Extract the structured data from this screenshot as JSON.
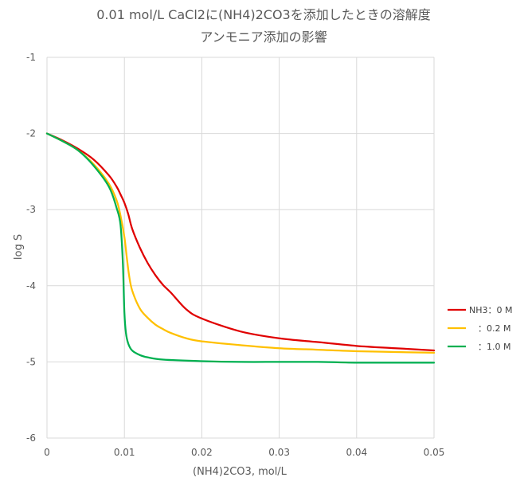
{
  "chart_data": {
    "type": "line",
    "title": "0.01 mol/L CaCl2に(NH4)2CO3を添加したときの溶解度",
    "subtitle": "アンモニア添加の影響",
    "xlabel": "(NH4)2CO3, mol/L",
    "ylabel": "log S",
    "xlim": [
      0,
      0.05
    ],
    "ylim": [
      -6,
      -1
    ],
    "x_ticks": [
      0,
      0.01,
      0.02,
      0.03,
      0.04,
      0.05
    ],
    "x_tick_labels": [
      "0",
      "0.01",
      "0.02",
      "0.03",
      "0.04",
      "0.05"
    ],
    "y_ticks": [
      -1,
      -2,
      -3,
      -4,
      -5,
      -6
    ],
    "y_tick_labels": [
      "-1",
      "-2",
      "-3",
      "-4",
      "-5",
      "-6"
    ],
    "grid": true,
    "legend_position": "right",
    "series": [
      {
        "name": "NH3：0 M",
        "color": "#e00000",
        "x": [
          0,
          0.002,
          0.004,
          0.006,
          0.008,
          0.009,
          0.0095,
          0.01,
          0.0105,
          0.011,
          0.012,
          0.013,
          0.014,
          0.015,
          0.016,
          0.018,
          0.02,
          0.025,
          0.03,
          0.035,
          0.04,
          0.045,
          0.05
        ],
        "y": [
          -2.0,
          -2.09,
          -2.2,
          -2.34,
          -2.55,
          -2.7,
          -2.8,
          -2.91,
          -3.06,
          -3.25,
          -3.5,
          -3.7,
          -3.86,
          -3.99,
          -4.09,
          -4.31,
          -4.43,
          -4.6,
          -4.69,
          -4.74,
          -4.79,
          -4.82,
          -4.85
        ]
      },
      {
        "name": "：0.2 M",
        "color": "#ffc000",
        "x": [
          0,
          0.002,
          0.004,
          0.006,
          0.008,
          0.009,
          0.0095,
          0.01,
          0.0103,
          0.0106,
          0.011,
          0.012,
          0.013,
          0.014,
          0.015,
          0.016,
          0.018,
          0.02,
          0.025,
          0.03,
          0.035,
          0.04,
          0.045,
          0.05
        ],
        "y": [
          -2.0,
          -2.1,
          -2.22,
          -2.4,
          -2.66,
          -2.88,
          -3.08,
          -3.36,
          -3.62,
          -3.86,
          -4.06,
          -4.3,
          -4.42,
          -4.51,
          -4.57,
          -4.62,
          -4.69,
          -4.73,
          -4.78,
          -4.82,
          -4.84,
          -4.86,
          -4.87,
          -4.88
        ]
      },
      {
        "name": "：1.0 M",
        "color": "#00b050",
        "x": [
          0,
          0.002,
          0.004,
          0.006,
          0.008,
          0.009,
          0.0095,
          0.0098,
          0.01,
          0.0102,
          0.0105,
          0.011,
          0.012,
          0.013,
          0.015,
          0.02,
          0.025,
          0.03,
          0.035,
          0.04,
          0.045,
          0.05
        ],
        "y": [
          -2.0,
          -2.1,
          -2.22,
          -2.42,
          -2.7,
          -2.98,
          -3.2,
          -3.7,
          -4.35,
          -4.62,
          -4.76,
          -4.85,
          -4.91,
          -4.94,
          -4.97,
          -4.99,
          -5.0,
          -5.0,
          -5.0,
          -5.01,
          -5.01,
          -5.01
        ]
      }
    ]
  }
}
